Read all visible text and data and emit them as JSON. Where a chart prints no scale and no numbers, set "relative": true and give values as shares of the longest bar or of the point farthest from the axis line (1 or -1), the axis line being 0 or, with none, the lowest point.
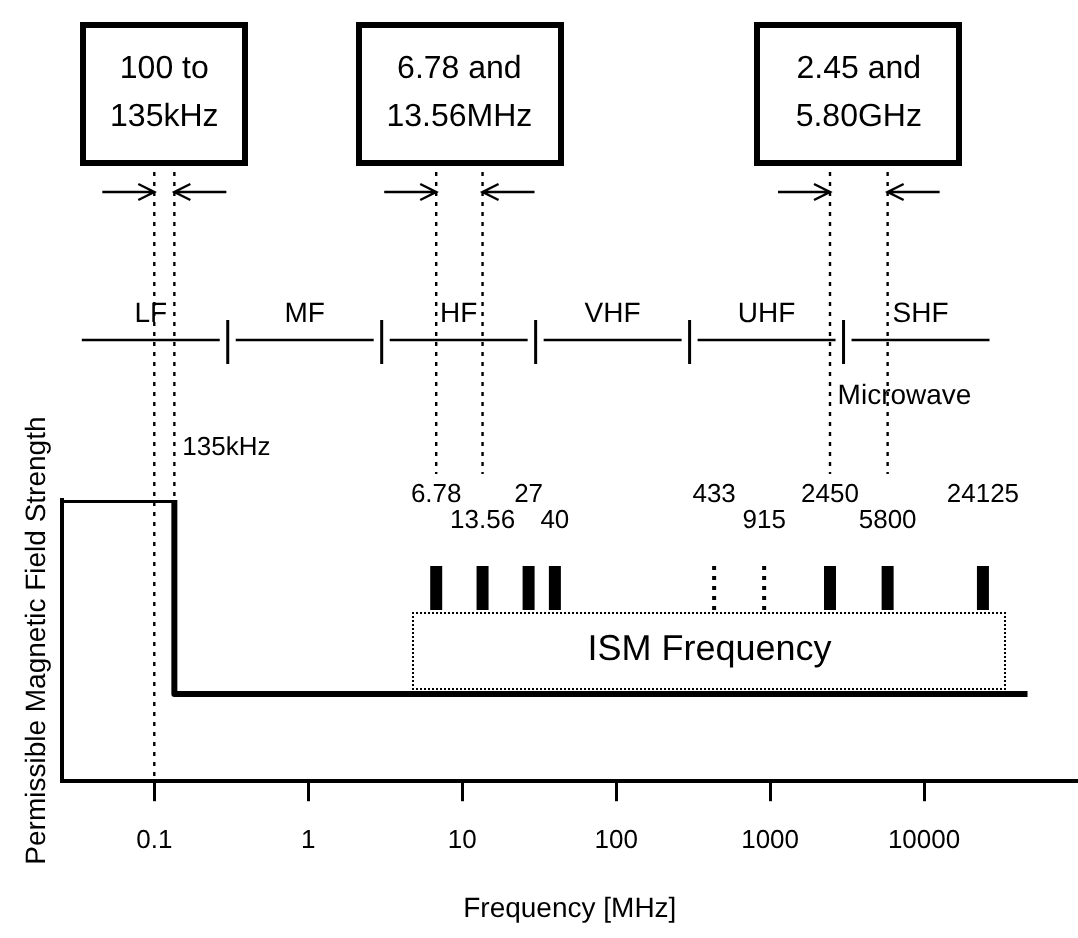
{
  "chart_data": {
    "type": "step",
    "xlabel": "Frequency [MHz]",
    "ylabel": "Permissible Magnetic Field Strength",
    "relative": true,
    "log": "x",
    "xlim": [
      0.025,
      100000
    ],
    "xticks": [
      0.1,
      1,
      10,
      100,
      1000,
      10000
    ],
    "series": [
      {
        "color": "#000000",
        "x": [
          0.025,
          0.135,
          47000
        ],
        "values": [
          1,
          0.31,
          0.31
        ]
      }
    ],
    "ref_lines": [
      {
        "axis": "x",
        "value": 0.1,
        "line_style": "dotted",
        "color": "#000000"
      },
      {
        "axis": "x",
        "value": 0.135,
        "label": "135kHz",
        "line_style": "dotted",
        "color": "#000000"
      },
      {
        "axis": "x",
        "value": 6.78,
        "label": "6.78",
        "line_style": "solid",
        "color": "#000000"
      },
      {
        "axis": "x",
        "value": 13.56,
        "label": "13.56",
        "line_style": "solid",
        "color": "#000000"
      },
      {
        "axis": "x",
        "value": 27,
        "label": "27",
        "line_style": "solid",
        "color": "#000000"
      },
      {
        "axis": "x",
        "value": 40,
        "label": "40",
        "line_style": "solid",
        "color": "#000000"
      },
      {
        "axis": "x",
        "value": 433,
        "label": "433",
        "line_style": "dotted",
        "color": "#000000"
      },
      {
        "axis": "x",
        "value": 915,
        "label": "915",
        "line_style": "dotted",
        "color": "#000000"
      },
      {
        "axis": "x",
        "value": 2450,
        "label": "2450",
        "line_style": "solid",
        "color": "#000000"
      },
      {
        "axis": "x",
        "value": 5800,
        "label": "5800",
        "line_style": "solid",
        "color": "#000000"
      },
      {
        "axis": "x",
        "value": 24125,
        "label": "24125",
        "line_style": "solid",
        "color": "#000000"
      }
    ],
    "annotations": [
      "100 to 135kHz",
      "6.78 and 13.56MHz",
      "2.45 and 5.80GHz",
      "LF",
      "MF",
      "HF",
      "VHF",
      "UHF",
      "SHF",
      "Microwave",
      "ISM Frequency"
    ]
  }
}
